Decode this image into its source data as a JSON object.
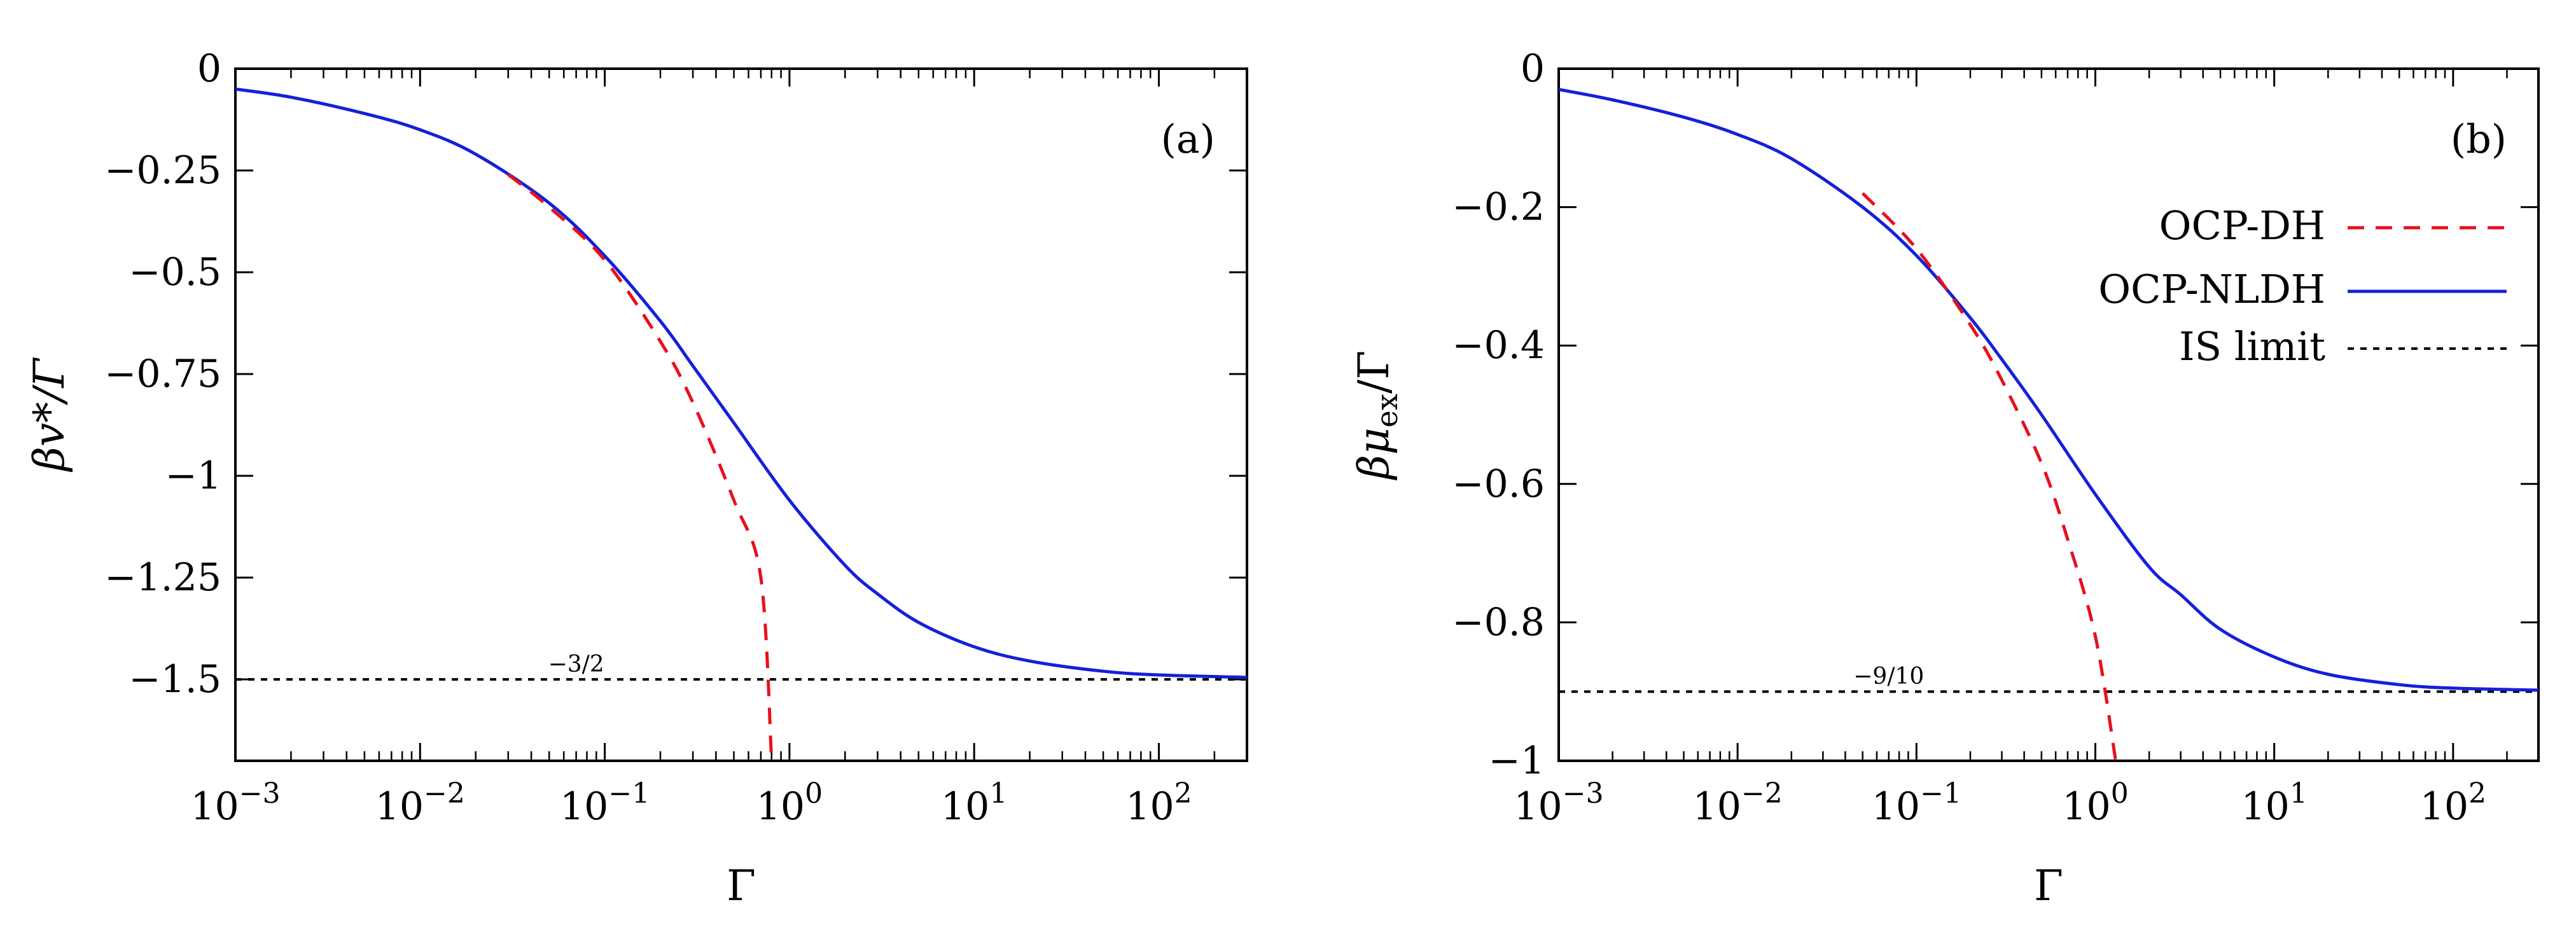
{
  "colors": {
    "dh": "#e8101c",
    "nldh": "#1420d8",
    "limit": "#000000",
    "axis": "#000000"
  },
  "legend": {
    "entries": [
      {
        "label": "OCP-DH",
        "style": "dashed",
        "color": "#e8101c"
      },
      {
        "label": "OCP-NLDH",
        "style": "solid",
        "color": "#1420d8"
      },
      {
        "label": "IS limit",
        "style": "dotted",
        "color": "#000000"
      }
    ]
  },
  "chart_data": [
    {
      "type": "line",
      "panel_label": "(a)",
      "xlabel": "Γ",
      "ylabel": "βv*/Γ",
      "xscale": "log",
      "xlim": [
        0.001,
        300
      ],
      "ylim": [
        -1.7,
        0
      ],
      "xticks": [
        {
          "value": 0.001,
          "base": "10",
          "exp": "−3"
        },
        {
          "value": 0.01,
          "base": "10",
          "exp": "−2"
        },
        {
          "value": 0.1,
          "base": "10",
          "exp": "−1"
        },
        {
          "value": 1,
          "base": "10",
          "exp": "0"
        },
        {
          "value": 10,
          "base": "10",
          "exp": "1"
        },
        {
          "value": 100,
          "base": "10",
          "exp": "2"
        }
      ],
      "yticks": [
        {
          "value": 0,
          "label": "0"
        },
        {
          "value": -0.25,
          "label": "−0.25"
        },
        {
          "value": -0.5,
          "label": "−0.5"
        },
        {
          "value": -0.75,
          "label": "−0.75"
        },
        {
          "value": -1,
          "label": "−1"
        },
        {
          "value": -1.25,
          "label": "−1.25"
        },
        {
          "value": -1.5,
          "label": "−1.5"
        }
      ],
      "limit_value": -1.5,
      "limit_label": "−3/2",
      "limit_label_x": 0.07,
      "series": [
        {
          "name": "OCP-NLDH",
          "style": "solid",
          "x": [
            0.001,
            0.002,
            0.005,
            0.01,
            0.02,
            0.05,
            0.1,
            0.2,
            0.3,
            0.5,
            1,
            2,
            3,
            5,
            10,
            20,
            50,
            100,
            300
          ],
          "y": [
            -0.05,
            -0.07,
            -0.11,
            -0.15,
            -0.21,
            -0.33,
            -0.46,
            -0.62,
            -0.73,
            -0.87,
            -1.06,
            -1.22,
            -1.29,
            -1.36,
            -1.42,
            -1.455,
            -1.48,
            -1.489,
            -1.495
          ]
        },
        {
          "name": "OCP-DH",
          "style": "dashed",
          "x": [
            0.03,
            0.05,
            0.1,
            0.2,
            0.3,
            0.5,
            0.7,
            0.8
          ],
          "y": [
            -0.26,
            -0.34,
            -0.47,
            -0.67,
            -0.82,
            -1.06,
            -1.25,
            -1.7
          ]
        }
      ]
    },
    {
      "type": "line",
      "panel_label": "(b)",
      "xlabel": "Γ",
      "ylabel": "βμex/Γ",
      "ylabel_main": "βμ",
      "ylabel_sub": "ex",
      "ylabel_tail": "/Γ",
      "xscale": "log",
      "xlim": [
        0.001,
        300
      ],
      "ylim": [
        -1,
        0
      ],
      "xticks": [
        {
          "value": 0.001,
          "base": "10",
          "exp": "−3"
        },
        {
          "value": 0.01,
          "base": "10",
          "exp": "−2"
        },
        {
          "value": 0.1,
          "base": "10",
          "exp": "−1"
        },
        {
          "value": 1,
          "base": "10",
          "exp": "0"
        },
        {
          "value": 10,
          "base": "10",
          "exp": "1"
        },
        {
          "value": 100,
          "base": "10",
          "exp": "2"
        }
      ],
      "yticks": [
        {
          "value": 0,
          "label": "0"
        },
        {
          "value": -0.2,
          "label": "−0.2"
        },
        {
          "value": -0.4,
          "label": "−0.4"
        },
        {
          "value": -0.6,
          "label": "−0.6"
        },
        {
          "value": -0.8,
          "label": "−0.8"
        },
        {
          "value": -1,
          "label": "−1"
        }
      ],
      "limit_value": -0.9,
      "limit_label": "−9/10",
      "limit_label_x": 0.07,
      "series": [
        {
          "name": "OCP-NLDH",
          "style": "solid",
          "x": [
            0.001,
            0.002,
            0.005,
            0.01,
            0.02,
            0.05,
            0.1,
            0.2,
            0.3,
            0.5,
            1,
            2,
            3,
            5,
            10,
            20,
            50,
            100,
            300
          ],
          "y": [
            -0.03,
            -0.045,
            -0.07,
            -0.095,
            -0.13,
            -0.2,
            -0.27,
            -0.36,
            -0.42,
            -0.5,
            -0.615,
            -0.72,
            -0.76,
            -0.81,
            -0.85,
            -0.875,
            -0.89,
            -0.895,
            -0.898
          ]
        },
        {
          "name": "OCP-DH",
          "style": "dashed",
          "x": [
            0.05,
            0.1,
            0.2,
            0.3,
            0.5,
            0.7,
            1,
            1.3
          ],
          "y": [
            -0.18,
            -0.26,
            -0.37,
            -0.45,
            -0.57,
            -0.68,
            -0.82,
            -1.0
          ]
        }
      ]
    }
  ]
}
